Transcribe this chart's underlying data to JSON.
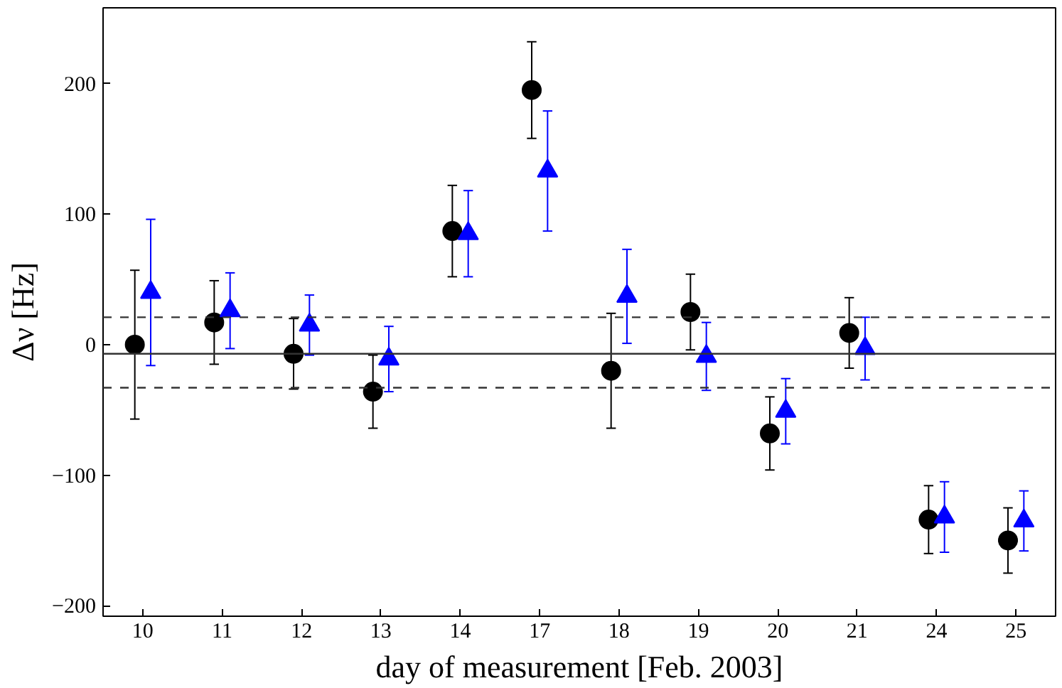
{
  "chart_data": {
    "type": "scatter",
    "xlabel": "day of measurement [Feb. 2003]",
    "ylabel": "Δν [Hz]",
    "categories": [
      "10",
      "11",
      "12",
      "13",
      "14",
      "17",
      "18",
      "19",
      "20",
      "21",
      "24",
      "25"
    ],
    "ylim": [
      -208,
      258
    ],
    "yticks": [
      -200,
      -100,
      0,
      100,
      200
    ],
    "grid": false,
    "series": [
      {
        "color": "#000000",
        "marker": "circle",
        "values": [
          0,
          17,
          -7,
          -36,
          87,
          195,
          -20,
          25,
          -68,
          9,
          -134,
          -150
        ],
        "errors": [
          57,
          32,
          27,
          28,
          35,
          37,
          44,
          29,
          28,
          27,
          26,
          25
        ]
      },
      {
        "color": "#0000ff",
        "marker": "triangle",
        "values": [
          40,
          26,
          15,
          -11,
          85,
          133,
          37,
          -9,
          -51,
          -3,
          -132,
          -135
        ],
        "errors": [
          56,
          29,
          23,
          25,
          33,
          46,
          36,
          26,
          25,
          24,
          27,
          23
        ]
      }
    ],
    "ref_lines": [
      {
        "axis": "y",
        "value": -7,
        "color": "#333333",
        "line_style": "solid"
      },
      {
        "axis": "y",
        "value": 21,
        "color": "#333333",
        "line_style": "dashed"
      },
      {
        "axis": "y",
        "value": -33,
        "color": "#333333",
        "line_style": "dashed"
      }
    ]
  }
}
